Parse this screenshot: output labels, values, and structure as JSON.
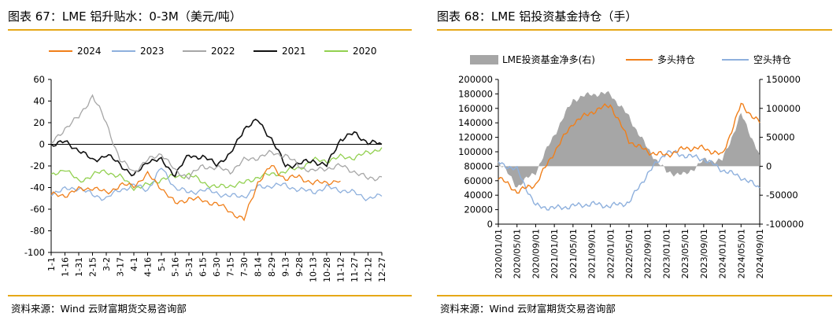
{
  "left": {
    "title": "图表 67：LME 铝升贴水：0-3M（美元/吨）",
    "source": "资料来源：Wind 云财富期货交易咨询部"
  },
  "right": {
    "title": "图表 68：LME 铝投资基金持仓（手）",
    "source": "资料来源：Wind 云财富期货交易咨询部"
  },
  "colors": {
    "accent": "#e6a817",
    "s2024": "#f07f1a",
    "s2023": "#8eb0dd",
    "s2022": "#a6a6a6",
    "s2021": "#111111",
    "s2020": "#92d050",
    "net": "#a6a6a6",
    "long": "#f07f1a",
    "short": "#8eb0dd"
  },
  "chart_data": [
    {
      "type": "line",
      "title": "LME 铝升贴水：0-3M（美元/吨）",
      "categories": [
        "1-1",
        "1-16",
        "1-31",
        "2-15",
        "3-2",
        "3-17",
        "4-1",
        "4-16",
        "5-1",
        "5-16",
        "5-31",
        "6-15",
        "6-30",
        "7-15",
        "7-30",
        "8-14",
        "8-29",
        "9-13",
        "9-28",
        "10-13",
        "10-28",
        "11-12",
        "11-27",
        "12-12",
        "12-27"
      ],
      "ylim": [
        -100,
        60
      ],
      "yticks": [
        "60",
        "40",
        "20",
        "0",
        "-20",
        "-40",
        "-60",
        "-80",
        "-100"
      ],
      "series": [
        {
          "name": "2024",
          "color_key": "s2024",
          "values": [
            -47,
            -47,
            -42,
            -40,
            -45,
            -38,
            -38,
            -28,
            -40,
            -55,
            -50,
            -52,
            -55,
            -62,
            -70,
            -35,
            -20,
            -32,
            -30,
            -36,
            -35,
            -34,
            null,
            null,
            null
          ]
        },
        {
          "name": "2023",
          "color_key": "s2023",
          "values": [
            -45,
            -42,
            -40,
            -47,
            -50,
            -42,
            -38,
            -42,
            -22,
            -40,
            -45,
            -42,
            -45,
            -48,
            -48,
            -40,
            -38,
            -38,
            -42,
            -44,
            -40,
            -42,
            -45,
            -50,
            -48
          ]
        },
        {
          "name": "2022",
          "color_key": "s2022",
          "values": [
            0,
            15,
            25,
            45,
            20,
            -15,
            -25,
            -15,
            -8,
            -25,
            -30,
            -20,
            -22,
            -25,
            -15,
            -12,
            -8,
            -10,
            -20,
            -25,
            -22,
            -20,
            -25,
            -32,
            -30
          ]
        },
        {
          "name": "2021",
          "color_key": "s2021",
          "values": [
            0,
            2,
            -5,
            -15,
            -10,
            -18,
            -30,
            -15,
            -15,
            -28,
            -10,
            -12,
            -18,
            -10,
            15,
            22,
            5,
            -20,
            -18,
            -15,
            -20,
            5,
            10,
            2,
            0
          ]
        },
        {
          "name": "2020",
          "color_key": "s2020",
          "values": [
            -30,
            -22,
            -35,
            -28,
            -25,
            -30,
            -40,
            -38,
            -32,
            -30,
            -28,
            -35,
            -40,
            -38,
            -36,
            -30,
            -28,
            -25,
            -22,
            -15,
            -15,
            -12,
            -12,
            -8,
            -3
          ]
        }
      ]
    },
    {
      "type": "line",
      "title": "LME 铝投资基金持仓（手）",
      "categories": [
        "2020/01/01",
        "2020/05/01",
        "2020/09/01",
        "2021/01/01",
        "2021/05/01",
        "2021/09/01",
        "2022/01/01",
        "2022/05/01",
        "2022/09/01",
        "2023/01/01",
        "2023/05/01",
        "2023/09/01",
        "2024/01/01",
        "2024/05/01",
        "2024/09/01"
      ],
      "ylim_left": [
        0,
        200000
      ],
      "ylim_right": [
        -100000,
        150000
      ],
      "yticks_left": [
        "200000",
        "180000",
        "160000",
        "140000",
        "120000",
        "100000",
        "80000",
        "60000",
        "40000",
        "20000",
        "0"
      ],
      "yticks_right": [
        "150000",
        "100000",
        "50000",
        "0",
        "-50000",
        "-100000"
      ],
      "series": [
        {
          "name": "LME投资基金净多(右)",
          "color_key": "net",
          "kind": "area",
          "axis": "right",
          "values": [
            10000,
            -35000,
            -10000,
            55000,
            115000,
            125000,
            125000,
            85000,
            30000,
            -10000,
            -15000,
            10000,
            10000,
            90000,
            20000
          ]
        },
        {
          "name": "多头持仓",
          "color_key": "long",
          "kind": "line",
          "axis": "left",
          "values": [
            65000,
            45000,
            55000,
            100000,
            140000,
            155000,
            165000,
            115000,
            100000,
            95000,
            105000,
            105000,
            95000,
            165000,
            140000
          ]
        },
        {
          "name": "空头持仓",
          "color_key": "short",
          "kind": "line",
          "axis": "left",
          "values": [
            85000,
            75000,
            25000,
            22000,
            25000,
            28000,
            25000,
            30000,
            70000,
            100000,
            95000,
            90000,
            75000,
            65000,
            50000
          ]
        }
      ]
    }
  ]
}
